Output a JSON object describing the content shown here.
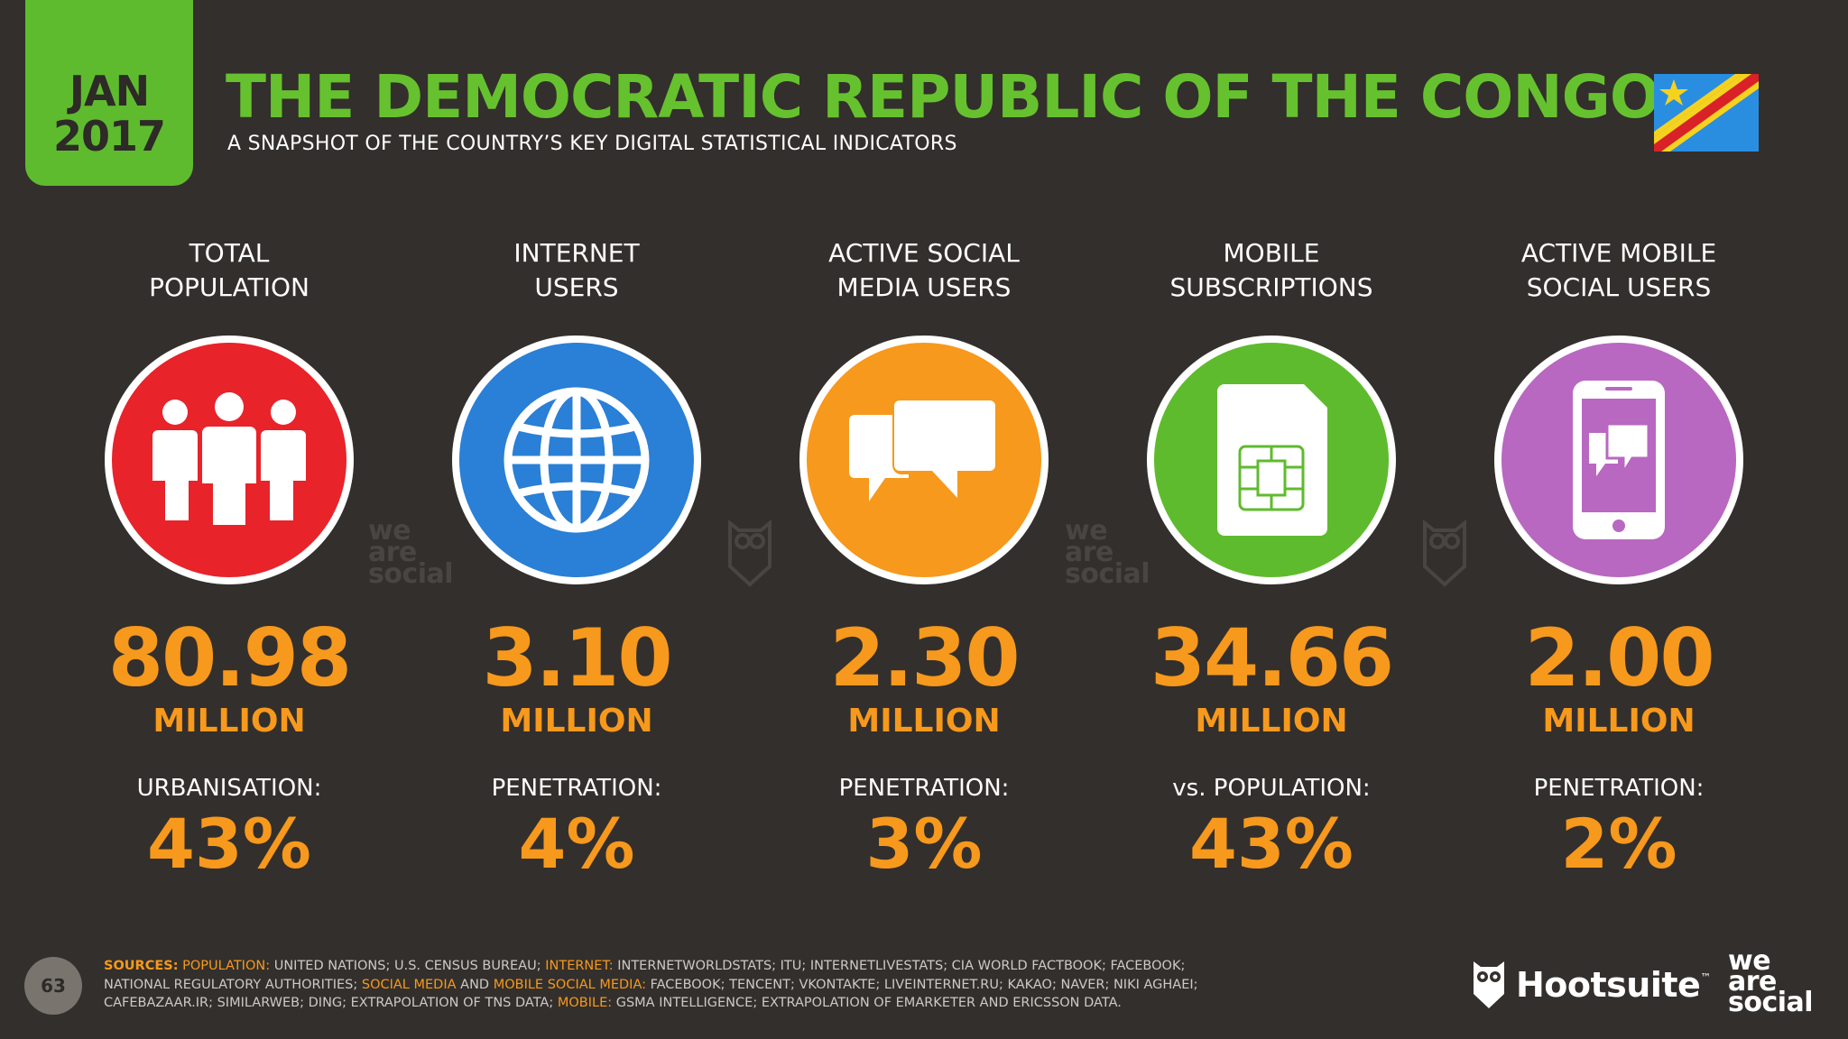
{
  "header": {
    "date_month": "JAN",
    "date_year": "2017",
    "title": "THE DEMOCRATIC REPUBLIC OF THE CONGO",
    "subtitle": "A SNAPSHOT OF THE COUNTRY’S KEY DIGITAL STATISTICAL INDICATORS"
  },
  "stats": [
    {
      "label1": "TOTAL",
      "label2": "POPULATION",
      "value": "80.98",
      "unit": "MILLION",
      "sublabel": "URBANISATION:",
      "percent": "43%",
      "icon": "people-icon",
      "color": "#e8232a"
    },
    {
      "label1": "INTERNET",
      "label2": "USERS",
      "value": "3.10",
      "unit": "MILLION",
      "sublabel": "PENETRATION:",
      "percent": "4%",
      "icon": "globe-icon",
      "color": "#2a7fd6"
    },
    {
      "label1": "ACTIVE SOCIAL",
      "label2": "MEDIA USERS",
      "value": "2.30",
      "unit": "MILLION",
      "sublabel": "PENETRATION:",
      "percent": "3%",
      "icon": "chat-bubbles-icon",
      "color": "#f7991c"
    },
    {
      "label1": "MOBILE",
      "label2": "SUBSCRIPTIONS",
      "value": "34.66",
      "unit": "MILLION",
      "sublabel": "vs. POPULATION:",
      "percent": "43%",
      "icon": "sim-card-icon",
      "color": "#5fbb2e"
    },
    {
      "label1": "ACTIVE MOBILE",
      "label2": "SOCIAL USERS",
      "value": "2.00",
      "unit": "MILLION",
      "sublabel": "PENETRATION:",
      "percent": "2%",
      "icon": "smartphone-chat-icon",
      "color": "#b868c0"
    }
  ],
  "watermark": {
    "line1": "we",
    "line2": "are",
    "line3": "social"
  },
  "footer": {
    "page_number": "63",
    "sources_label": "SOURCES:",
    "src_population_label": "POPULATION:",
    "src_population_text": "UNITED NATIONS; U.S. CENSUS BUREAU;",
    "src_internet_label": "INTERNET:",
    "src_internet_text": "INTERNETWORLDSTATS; ITU; INTERNETLIVESTATS; CIA WORLD FACTBOOK; FACEBOOK; NATIONAL REGULATORY AUTHORITIES;",
    "src_social_label": "SOCIAL MEDIA",
    "src_and": "AND",
    "src_mobile_social_label": "MOBILE SOCIAL MEDIA:",
    "src_social_text": "FACEBOOK; TENCENT; VKONTAKTE; LIVEINTERNET.RU; KAKAO; NAVER; NIKI AGHAEI; CAFEBAZAAR.IR; SIMILARWEB; DING; EXTRAPOLATION OF TNS DATA;",
    "src_mobile_label": "MOBILE:",
    "src_mobile_text": "GSMA INTELLIGENCE; EXTRAPOLATION OF EMARKETER AND ERICSSON DATA.",
    "brand_hootsuite": "Hootsuite",
    "brand_tm": "™",
    "brand_was_1": "we",
    "brand_was_2": "are",
    "brand_was_3": "social"
  }
}
